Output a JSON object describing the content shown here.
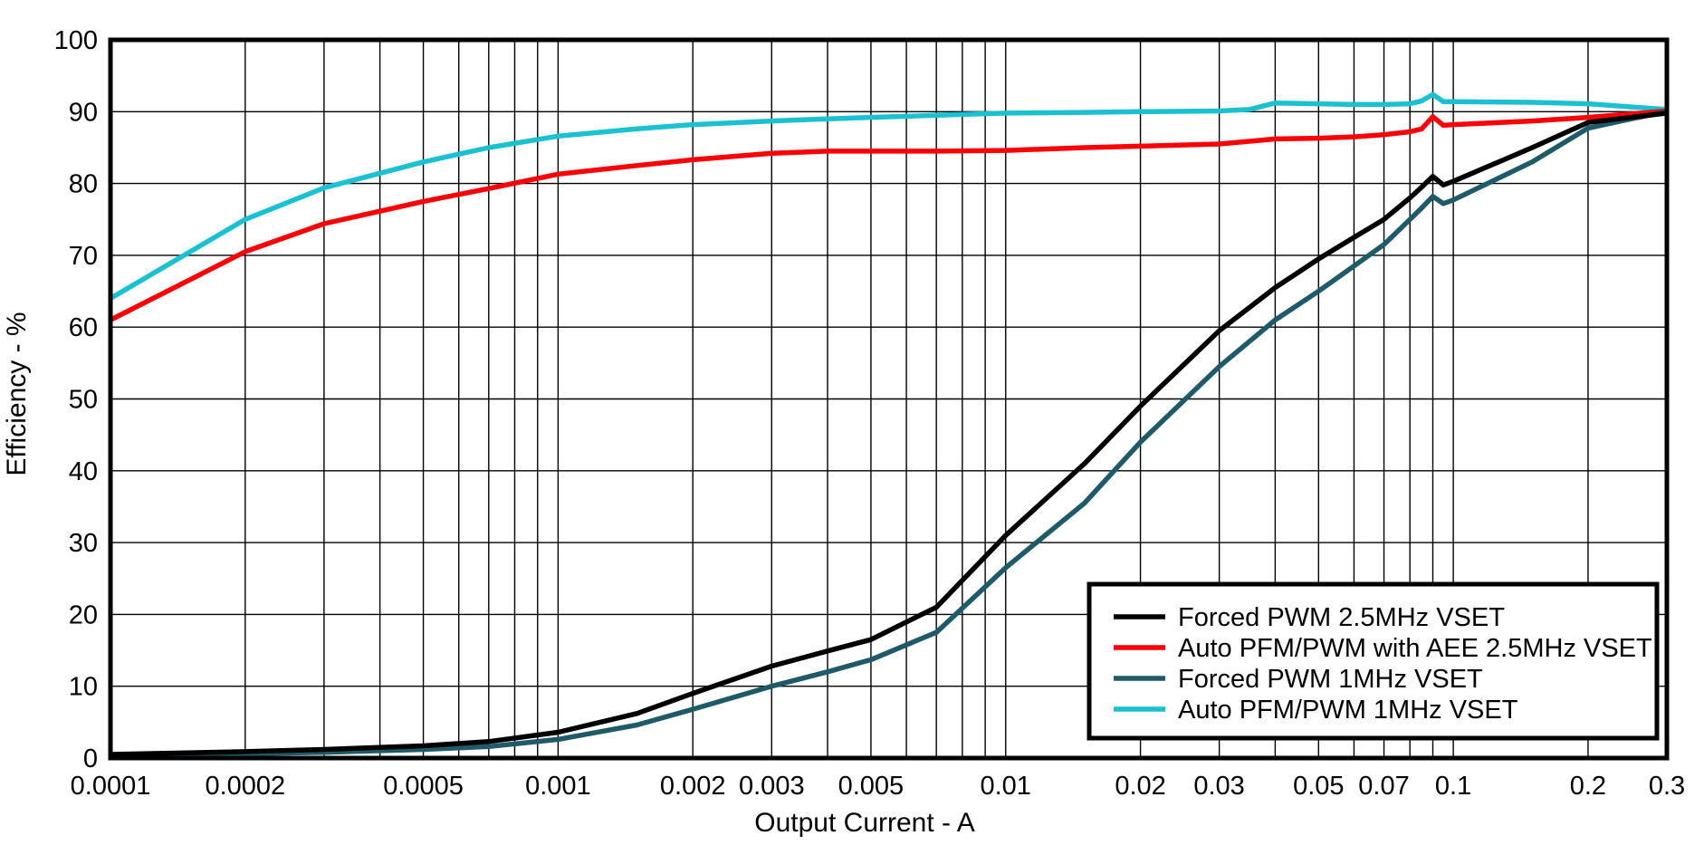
{
  "chart_data": {
    "type": "line",
    "title": "",
    "xlabel": "Output Current - A",
    "ylabel": "Efficiency - %",
    "x_scale": "log",
    "x_range": [
      0.0001,
      0.3
    ],
    "y_range": [
      0,
      100
    ],
    "x_tick_values": [
      0.0001,
      0.0002,
      0.0005,
      0.001,
      0.002,
      0.003,
      0.005,
      0.01,
      0.02,
      0.03,
      0.05,
      0.07,
      0.1,
      0.2,
      0.3
    ],
    "x_tick_labels": [
      "0.0001",
      "0.0002",
      "0.0005",
      "0.001",
      "0.002",
      "0.003",
      "0.005",
      "0.01",
      "0.02",
      "0.03",
      "0.05",
      "0.07",
      "0.1",
      "0.2",
      "0.3"
    ],
    "y_tick_values": [
      0,
      10,
      20,
      30,
      40,
      50,
      60,
      70,
      80,
      90,
      100
    ],
    "grid": {
      "on": true,
      "vertical": "log-minor-every-decade",
      "horizontal_step": 10,
      "color": "#000000"
    },
    "legend_position": "lower-right",
    "series": [
      {
        "name": "Forced PWM 2.5MHz VSET",
        "color": "#000000",
        "points": [
          [
            0.0001,
            0.5
          ],
          [
            0.0002,
            0.9
          ],
          [
            0.0003,
            1.2
          ],
          [
            0.0005,
            1.7
          ],
          [
            0.0007,
            2.3
          ],
          [
            0.001,
            3.6
          ],
          [
            0.0015,
            6.2
          ],
          [
            0.002,
            9.0
          ],
          [
            0.003,
            12.8
          ],
          [
            0.004,
            14.9
          ],
          [
            0.005,
            16.5
          ],
          [
            0.007,
            21.0
          ],
          [
            0.01,
            31.0
          ],
          [
            0.015,
            41.0
          ],
          [
            0.02,
            49.0
          ],
          [
            0.03,
            59.5
          ],
          [
            0.04,
            65.5
          ],
          [
            0.05,
            69.5
          ],
          [
            0.06,
            72.5
          ],
          [
            0.07,
            75.0
          ],
          [
            0.08,
            78.0
          ],
          [
            0.085,
            79.5
          ],
          [
            0.09,
            81.0
          ],
          [
            0.095,
            79.8
          ],
          [
            0.1,
            80.3
          ],
          [
            0.15,
            85.0
          ],
          [
            0.2,
            88.5
          ],
          [
            0.3,
            89.8
          ]
        ]
      },
      {
        "name": "Auto PFM/PWM with AEE 2.5MHz VSET",
        "color": "#fb0207",
        "points": [
          [
            0.0001,
            61.0
          ],
          [
            0.0002,
            70.5
          ],
          [
            0.0003,
            74.4
          ],
          [
            0.0005,
            77.5
          ],
          [
            0.0007,
            79.3
          ],
          [
            0.001,
            81.3
          ],
          [
            0.0015,
            82.5
          ],
          [
            0.002,
            83.3
          ],
          [
            0.003,
            84.2
          ],
          [
            0.004,
            84.5
          ],
          [
            0.005,
            84.5
          ],
          [
            0.007,
            84.5
          ],
          [
            0.01,
            84.6
          ],
          [
            0.015,
            85.0
          ],
          [
            0.02,
            85.2
          ],
          [
            0.03,
            85.5
          ],
          [
            0.04,
            86.2
          ],
          [
            0.05,
            86.3
          ],
          [
            0.06,
            86.5
          ],
          [
            0.07,
            86.8
          ],
          [
            0.08,
            87.2
          ],
          [
            0.085,
            87.6
          ],
          [
            0.09,
            89.3
          ],
          [
            0.095,
            88.1
          ],
          [
            0.1,
            88.2
          ],
          [
            0.15,
            88.7
          ],
          [
            0.2,
            89.2
          ],
          [
            0.3,
            90.1
          ]
        ]
      },
      {
        "name": "Forced PWM 1MHz VSET",
        "color": "#1e5a68",
        "points": [
          [
            0.0001,
            0.3
          ],
          [
            0.0002,
            0.6
          ],
          [
            0.0003,
            0.8
          ],
          [
            0.0005,
            1.2
          ],
          [
            0.0007,
            1.6
          ],
          [
            0.001,
            2.6
          ],
          [
            0.0015,
            4.6
          ],
          [
            0.002,
            6.8
          ],
          [
            0.003,
            10.0
          ],
          [
            0.004,
            12.0
          ],
          [
            0.005,
            13.7
          ],
          [
            0.007,
            17.5
          ],
          [
            0.01,
            26.5
          ],
          [
            0.015,
            35.5
          ],
          [
            0.02,
            44.0
          ],
          [
            0.03,
            54.5
          ],
          [
            0.04,
            61.0
          ],
          [
            0.05,
            65.0
          ],
          [
            0.06,
            68.5
          ],
          [
            0.07,
            71.5
          ],
          [
            0.08,
            75.0
          ],
          [
            0.085,
            76.6
          ],
          [
            0.09,
            78.2
          ],
          [
            0.095,
            77.2
          ],
          [
            0.1,
            77.7
          ],
          [
            0.15,
            83.0
          ],
          [
            0.2,
            87.7
          ],
          [
            0.25,
            89.0
          ],
          [
            0.3,
            90.0
          ]
        ]
      },
      {
        "name": "Auto PFM/PWM 1MHz VSET",
        "color": "#1cc1d1",
        "points": [
          [
            0.0001,
            64.0
          ],
          [
            0.0002,
            75.0
          ],
          [
            0.0003,
            79.4
          ],
          [
            0.0005,
            83.0
          ],
          [
            0.0007,
            85.0
          ],
          [
            0.001,
            86.6
          ],
          [
            0.0015,
            87.6
          ],
          [
            0.002,
            88.2
          ],
          [
            0.003,
            88.7
          ],
          [
            0.004,
            89.0
          ],
          [
            0.005,
            89.2
          ],
          [
            0.007,
            89.5
          ],
          [
            0.01,
            89.8
          ],
          [
            0.015,
            89.9
          ],
          [
            0.02,
            90.0
          ],
          [
            0.03,
            90.1
          ],
          [
            0.035,
            90.3
          ],
          [
            0.04,
            91.2
          ],
          [
            0.05,
            91.1
          ],
          [
            0.06,
            91.0
          ],
          [
            0.07,
            91.0
          ],
          [
            0.08,
            91.1
          ],
          [
            0.085,
            91.5
          ],
          [
            0.09,
            92.4
          ],
          [
            0.095,
            91.4
          ],
          [
            0.1,
            91.4
          ],
          [
            0.15,
            91.3
          ],
          [
            0.2,
            91.1
          ],
          [
            0.3,
            90.3
          ]
        ]
      }
    ]
  }
}
